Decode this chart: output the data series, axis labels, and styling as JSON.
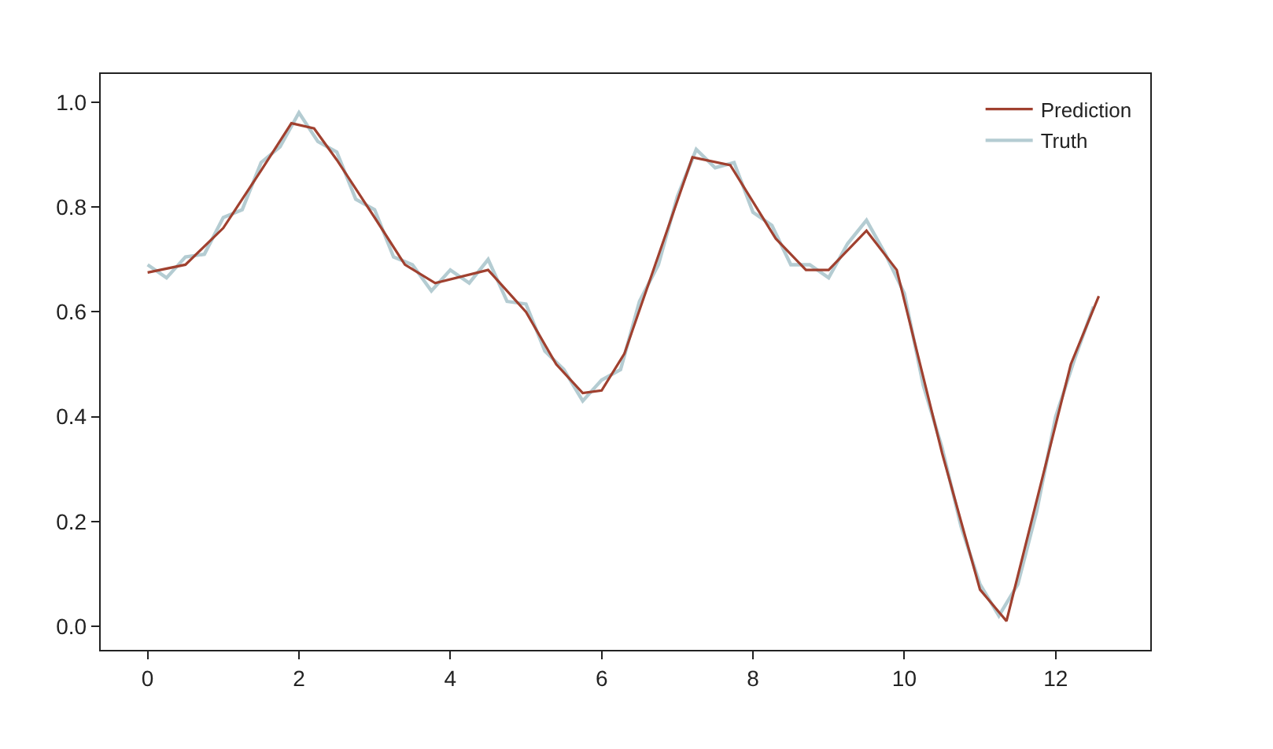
{
  "chart_data": {
    "type": "line",
    "xlim": [
      -0.62,
      13.25
    ],
    "ylim": [
      -0.045,
      1.054
    ],
    "xticks": [
      0,
      2,
      4,
      6,
      8,
      10,
      12
    ],
    "yticks": [
      {
        "value": 0,
        "label": "0.0"
      },
      {
        "value": 0.2,
        "label": "0.2"
      },
      {
        "value": 0.4,
        "label": "0.4"
      },
      {
        "value": 0.6,
        "label": "0.6"
      },
      {
        "value": 0.8,
        "label": "0.8"
      },
      {
        "value": 1,
        "label": "1.0"
      }
    ],
    "legend": "top right",
    "marker": "none",
    "line_style": "solid",
    "series": [
      {
        "name": "Prediction",
        "color": "#a0402f",
        "x": [
          0,
          0.5,
          1,
          1.5,
          1.9,
          2.2,
          2.5,
          3,
          3.4,
          3.8,
          4.5,
          5,
          5.4,
          5.75,
          6,
          6.3,
          7.2,
          7.7,
          8.3,
          8.7,
          9,
          9.5,
          9.9,
          10.5,
          11,
          11.35,
          12.2,
          12.57
        ],
        "values": [
          0.675,
          0.69,
          0.76,
          0.87,
          0.96,
          0.95,
          0.89,
          0.78,
          0.69,
          0.655,
          0.68,
          0.6,
          0.5,
          0.445,
          0.45,
          0.52,
          0.895,
          0.88,
          0.74,
          0.68,
          0.68,
          0.755,
          0.68,
          0.33,
          0.07,
          0.01,
          0.5,
          0.63
        ]
      },
      {
        "name": "Truth",
        "color": "#b4ccd2",
        "x": [
          0,
          0.25,
          0.5,
          0.75,
          1,
          1.25,
          1.5,
          1.75,
          2,
          2.25,
          2.5,
          2.75,
          3,
          3.25,
          3.5,
          3.75,
          4,
          4.25,
          4.5,
          4.75,
          5,
          5.25,
          5.5,
          5.75,
          6,
          6.25,
          6.5,
          6.75,
          7,
          7.25,
          7.5,
          7.75,
          8,
          8.25,
          8.5,
          8.75,
          9,
          9.25,
          9.5,
          9.75,
          10,
          10.25,
          10.5,
          10.75,
          11,
          11.25,
          11.5,
          11.75,
          12,
          12.25,
          12.5
        ],
        "values": [
          0.69,
          0.665,
          0.705,
          0.71,
          0.78,
          0.795,
          0.885,
          0.915,
          0.98,
          0.925,
          0.905,
          0.815,
          0.795,
          0.705,
          0.69,
          0.64,
          0.68,
          0.655,
          0.7,
          0.62,
          0.615,
          0.525,
          0.49,
          0.43,
          0.47,
          0.49,
          0.62,
          0.69,
          0.82,
          0.91,
          0.875,
          0.885,
          0.79,
          0.765,
          0.69,
          0.69,
          0.665,
          0.73,
          0.775,
          0.71,
          0.635,
          0.46,
          0.34,
          0.19,
          0.08,
          0.02,
          0.08,
          0.22,
          0.4,
          0.51,
          0.61
        ]
      }
    ]
  }
}
